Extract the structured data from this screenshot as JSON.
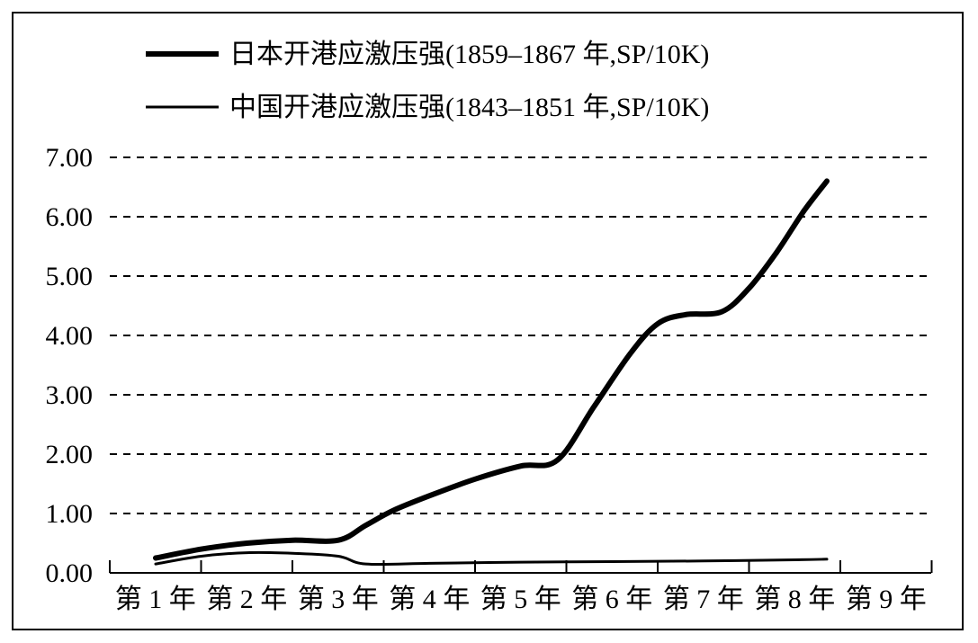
{
  "chart_data": {
    "type": "line",
    "title": "",
    "xlabel": "",
    "ylabel": "",
    "categories": [
      "第 1 年",
      "第 2 年",
      "第 3 年",
      "第 4 年",
      "第 5 年",
      "第 6 年",
      "第 7 年",
      "第 8 年",
      "第 9 年"
    ],
    "y_ticks": [
      "0.00",
      "1.00",
      "2.00",
      "3.00",
      "4.00",
      "5.00",
      "6.00",
      "7.00"
    ],
    "ylim": [
      0,
      7
    ],
    "grid": "horizontal-dashed",
    "legend_position": "top-left",
    "series": [
      {
        "name": "日本开港应激压强(1859–1867 年,SP/10K)",
        "style": "thick",
        "color": "#000000",
        "points": [
          [
            1,
            0.25
          ],
          [
            1.5,
            0.4
          ],
          [
            2,
            0.5
          ],
          [
            2.5,
            0.55
          ],
          [
            3,
            0.55
          ],
          [
            3.3,
            0.8
          ],
          [
            3.6,
            1.05
          ],
          [
            4,
            1.3
          ],
          [
            4.5,
            1.58
          ],
          [
            5,
            1.8
          ],
          [
            5.4,
            1.9
          ],
          [
            5.8,
            2.8
          ],
          [
            6.2,
            3.7
          ],
          [
            6.5,
            4.2
          ],
          [
            6.8,
            4.35
          ],
          [
            7.2,
            4.4
          ],
          [
            7.5,
            4.8
          ],
          [
            7.8,
            5.4
          ],
          [
            8.1,
            6.1
          ],
          [
            8.35,
            6.6
          ]
        ]
      },
      {
        "name": "中国开港应激压强(1843–1851 年,SP/10K)",
        "style": "thin",
        "color": "#000000",
        "points": [
          [
            1,
            0.15
          ],
          [
            1.5,
            0.28
          ],
          [
            2,
            0.34
          ],
          [
            2.5,
            0.33
          ],
          [
            3,
            0.28
          ],
          [
            3.3,
            0.15
          ],
          [
            4,
            0.16
          ],
          [
            5,
            0.18
          ],
          [
            6,
            0.19
          ],
          [
            7,
            0.2
          ],
          [
            8,
            0.22
          ],
          [
            8.35,
            0.23
          ]
        ]
      }
    ]
  }
}
